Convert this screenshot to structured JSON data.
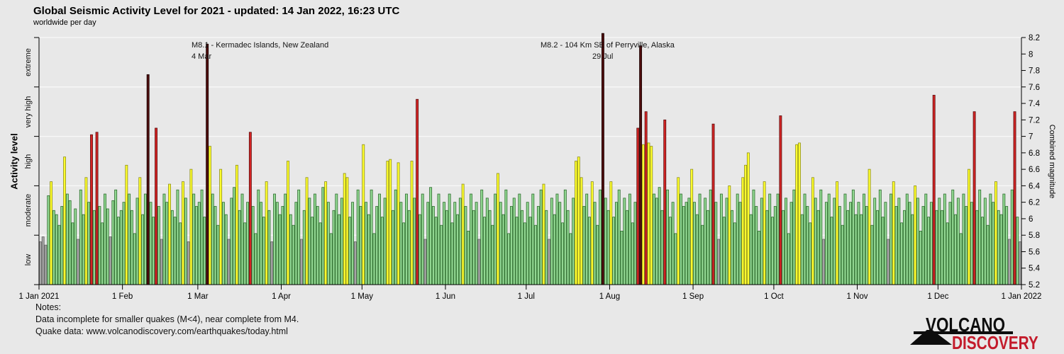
{
  "header": {
    "title": "Global Seismic Activity Level for 2021 - updated: 14 Jan 2022, 16:23 UTC",
    "subtitle": "worldwide per day"
  },
  "left_axis": {
    "title": "Activity level",
    "categories": [
      "low",
      "moderate",
      "high",
      "very high",
      "extreme"
    ]
  },
  "right_axis": {
    "title": "Combined magnitude",
    "min": 5.2,
    "max": 8.2,
    "step": 0.2
  },
  "annotations": [
    {
      "line1": "M8.1 - Kermadec Islands, New Zealand",
      "line2": "4 Mar"
    },
    {
      "line1": "M8.2 - 104 Km SE of Perryville, Alaska",
      "line2": "29 Jul"
    }
  ],
  "notes": {
    "heading": "Notes:",
    "line1": "Data incomplete for smaller quakes (M<4), near complete from M4.",
    "line2": "Quake data: www.volcanodiscovery.com/earthquakes/today.html"
  },
  "logo": {
    "word1": "VOLCANO",
    "word2": "DISCOVERY"
  },
  "colors": {
    "background": "#e8e8e8",
    "gridline": "#f8f8f8",
    "axis": "#000000",
    "logo_red": "#c31b2b",
    "levels": {
      "low": {
        "fill": "#a6a6a6",
        "stroke": "#636363"
      },
      "moderate": {
        "fill": "#92d792",
        "stroke": "#2f6e2f"
      },
      "high": {
        "fill": "#ffff2e",
        "stroke": "#8f8f1a"
      },
      "very high": {
        "fill": "#d42424",
        "stroke": "#5c1010"
      },
      "extreme": {
        "fill": "#4f0d0d",
        "stroke": "#1a0404"
      }
    }
  },
  "chart_data": {
    "type": "bar",
    "title": "Global Seismic Activity Level for 2021 - updated: 14 Jan 2022, 16:23 UTC",
    "subtitle": "worldwide per day",
    "xlabel": "",
    "ylabel_left": "Activity level",
    "ylabel_right": "Combined magnitude",
    "ylim": [
      5.2,
      8.2
    ],
    "grid": true,
    "x_unit": "day of year 2021, one bar per day",
    "level_boundaries": [
      5.2,
      5.8,
      6.4,
      7.0,
      7.6,
      8.2
    ],
    "level_names": [
      "low",
      "moderate",
      "high",
      "very high",
      "extreme"
    ],
    "month_start_day": [
      1,
      32,
      60,
      91,
      121,
      152,
      182,
      213,
      244,
      274,
      305,
      335,
      366
    ],
    "month_labels": [
      "1 Jan 2021",
      "1 Feb",
      "1 Mar",
      "1 Apr",
      "1 May",
      "1 Jun",
      "1 Jul",
      "1 Aug",
      "1 Sep",
      "1 Oct",
      "1 Nov",
      "1 Dec",
      "1 Jan 2022"
    ],
    "highlight_events": [
      {
        "day": 63,
        "label": "M8.1 - Kermadec Islands, New Zealand",
        "date": "4 Mar",
        "value": 8.1
      },
      {
        "day": 210,
        "label": "M8.2 - 104 Km SE of Perryville, Alaska",
        "date": "29 Jul",
        "value": 8.2
      }
    ],
    "values": [
      5.72,
      5.78,
      5.68,
      6.28,
      6.45,
      6.1,
      6.05,
      5.92,
      6.15,
      6.75,
      6.3,
      6.22,
      5.95,
      6.12,
      5.75,
      6.35,
      6.05,
      6.5,
      6.2,
      7.02,
      6.1,
      7.05,
      6.15,
      5.95,
      6.3,
      6.12,
      5.78,
      6.22,
      6.35,
      6.02,
      6.1,
      6.2,
      6.65,
      6.3,
      6.1,
      5.82,
      6.25,
      6.5,
      6.05,
      6.3,
      7.75,
      6.2,
      6.02,
      7.1,
      6.15,
      5.75,
      6.3,
      6.2,
      6.42,
      6.1,
      6.02,
      6.35,
      5.95,
      6.45,
      6.25,
      5.72,
      6.6,
      6.3,
      6.15,
      6.2,
      6.35,
      6.02,
      8.12,
      6.88,
      6.3,
      6.15,
      5.92,
      6.6,
      6.2,
      6.05,
      5.75,
      6.25,
      6.38,
      6.65,
      6.1,
      6.3,
      5.95,
      6.2,
      7.05,
      6.15,
      5.82,
      6.35,
      6.2,
      6.02,
      6.45,
      6.1,
      5.72,
      6.3,
      6.2,
      6.05,
      6.15,
      6.3,
      6.7,
      6.05,
      5.92,
      6.2,
      6.35,
      5.75,
      6.1,
      6.5,
      6.25,
      6.02,
      6.3,
      6.15,
      5.95,
      6.38,
      6.45,
      6.2,
      5.82,
      6.1,
      6.3,
      6.05,
      6.25,
      6.55,
      6.5,
      6.02,
      6.2,
      5.72,
      6.35,
      6.15,
      6.9,
      6.2,
      6.05,
      6.35,
      5.82,
      6.15,
      6.3,
      6.02,
      6.25,
      6.7,
      6.72,
      6.1,
      6.35,
      6.68,
      6.2,
      5.95,
      6.3,
      6.1,
      6.7,
      6.25,
      7.45,
      6.05,
      6.3,
      5.75,
      6.2,
      6.38,
      6.15,
      6.02,
      6.3,
      5.92,
      6.2,
      6.1,
      6.3,
      5.95,
      6.2,
      6.05,
      6.25,
      6.42,
      6.15,
      5.85,
      6.3,
      6.1,
      6.2,
      5.75,
      6.35,
      6.02,
      6.25,
      6.1,
      5.92,
      6.3,
      6.55,
      6.2,
      6.05,
      6.35,
      5.82,
      6.15,
      6.25,
      6.02,
      6.3,
      6.1,
      5.95,
      6.2,
      6.02,
      6.3,
      5.92,
      6.15,
      6.35,
      6.42,
      6.1,
      5.75,
      6.25,
      6.05,
      6.3,
      6.2,
      5.95,
      6.35,
      6.1,
      5.82,
      6.25,
      6.7,
      6.75,
      6.5,
      6.15,
      6.3,
      6.02,
      6.45,
      6.2,
      5.92,
      6.35,
      8.25,
      6.25,
      6.1,
      6.45,
      6.02,
      6.2,
      6.35,
      5.85,
      6.25,
      6.1,
      6.3,
      5.95,
      6.2,
      7.1,
      8.1,
      6.9,
      7.3,
      6.92,
      6.88,
      6.3,
      6.25,
      6.38,
      6.1,
      7.2,
      6.35,
      6.02,
      6.2,
      5.82,
      6.5,
      6.3,
      6.15,
      6.2,
      6.25,
      6.6,
      6.2,
      6.05,
      6.3,
      5.92,
      6.25,
      6.1,
      6.35,
      7.15,
      6.2,
      5.75,
      6.3,
      6.02,
      6.25,
      6.4,
      6.1,
      5.95,
      6.3,
      6.2,
      6.5,
      6.65,
      6.8,
      6.05,
      6.35,
      6.15,
      5.85,
      6.25,
      6.45,
      6.1,
      6.3,
      6.02,
      6.15,
      6.3,
      7.25,
      6.1,
      6.25,
      5.82,
      6.2,
      6.35,
      6.9,
      6.92,
      6.05,
      6.3,
      6.15,
      5.95,
      6.5,
      6.25,
      6.1,
      6.35,
      5.75,
      6.2,
      6.3,
      6.02,
      6.25,
      6.45,
      6.15,
      5.92,
      6.3,
      6.1,
      6.2,
      6.35,
      6.05,
      6.2,
      6.05,
      6.3,
      6.15,
      6.6,
      5.92,
      6.25,
      6.1,
      6.35,
      6.02,
      6.2,
      5.75,
      6.3,
      6.45,
      6.15,
      6.25,
      5.95,
      6.1,
      6.3,
      6.2,
      6.05,
      6.4,
      6.25,
      5.85,
      6.15,
      6.3,
      6.02,
      6.2,
      7.5,
      6.1,
      6.25,
      6.1,
      6.3,
      5.95,
      6.2,
      6.35,
      6.05,
      6.25,
      5.82,
      6.3,
      6.15,
      6.6,
      6.2,
      7.3,
      6.1,
      6.35,
      6.02,
      6.25,
      5.92,
      6.3,
      6.2,
      6.45,
      6.1,
      6.05,
      6.3,
      6.15,
      5.75,
      6.35,
      7.3,
      6.02,
      5.72
    ]
  }
}
